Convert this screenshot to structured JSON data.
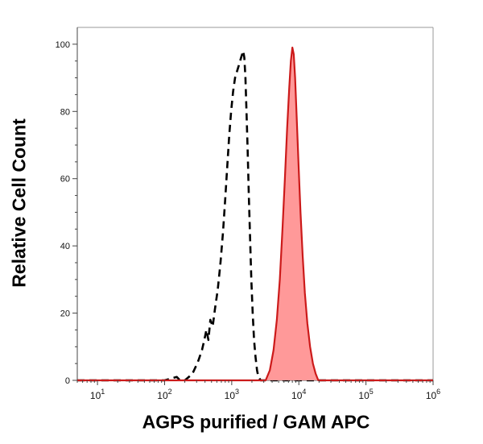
{
  "chart_data": {
    "type": "area",
    "title": "",
    "xlabel": "AGPS purified / GAM APC",
    "ylabel": "Relative Cell Count",
    "xscale": "log",
    "xlim": [
      5,
      1000000
    ],
    "ylim": [
      0,
      105
    ],
    "grid": false,
    "x_ticks": [
      {
        "value": 10,
        "base": "10",
        "exp": "1"
      },
      {
        "value": 100,
        "base": "10",
        "exp": "2"
      },
      {
        "value": 1000,
        "base": "10",
        "exp": "3"
      },
      {
        "value": 10000,
        "base": "10",
        "exp": "4"
      },
      {
        "value": 100000,
        "base": "10",
        "exp": "5"
      },
      {
        "value": 1000000,
        "base": "10",
        "exp": "6"
      }
    ],
    "y_ticks": [
      0,
      20,
      40,
      60,
      80,
      100
    ],
    "series": [
      {
        "style": "dashed-line",
        "color": "#000000",
        "points": [
          [
            5,
            0
          ],
          [
            100,
            0
          ],
          [
            152,
            1
          ],
          [
            170,
            0
          ],
          [
            200,
            0
          ],
          [
            230,
            1
          ],
          [
            260,
            2
          ],
          [
            290,
            4
          ],
          [
            320,
            6
          ],
          [
            360,
            9
          ],
          [
            390,
            12
          ],
          [
            420,
            15
          ],
          [
            450,
            12
          ],
          [
            480,
            18
          ],
          [
            520,
            16
          ],
          [
            560,
            21
          ],
          [
            620,
            27
          ],
          [
            680,
            35
          ],
          [
            740,
            44
          ],
          [
            800,
            54
          ],
          [
            860,
            64
          ],
          [
            920,
            73
          ],
          [
            980,
            80
          ],
          [
            1050,
            86
          ],
          [
            1120,
            90
          ],
          [
            1200,
            92
          ],
          [
            1290,
            94
          ],
          [
            1380,
            96
          ],
          [
            1480,
            98
          ],
          [
            1540,
            96
          ],
          [
            1600,
            90
          ],
          [
            1660,
            80
          ],
          [
            1730,
            68
          ],
          [
            1800,
            55
          ],
          [
            1880,
            42
          ],
          [
            1960,
            30
          ],
          [
            2050,
            20
          ],
          [
            2150,
            12
          ],
          [
            2260,
            7
          ],
          [
            2380,
            3
          ],
          [
            2500,
            1
          ],
          [
            2700,
            0
          ],
          [
            1000000,
            0
          ]
        ]
      },
      {
        "style": "filled",
        "color": "#cc1a1a",
        "fill": "#ff9999",
        "points": [
          [
            5,
            0
          ],
          [
            3200,
            0
          ],
          [
            3700,
            3
          ],
          [
            4200,
            9
          ],
          [
            4700,
            18
          ],
          [
            5200,
            30
          ],
          [
            5700,
            45
          ],
          [
            6200,
            60
          ],
          [
            6700,
            75
          ],
          [
            7200,
            87
          ],
          [
            7600,
            95
          ],
          [
            8000,
            99
          ],
          [
            8400,
            97
          ],
          [
            8800,
            90
          ],
          [
            9300,
            78
          ],
          [
            9900,
            64
          ],
          [
            10600,
            50
          ],
          [
            11400,
            37
          ],
          [
            12300,
            26
          ],
          [
            13400,
            17
          ],
          [
            14700,
            10
          ],
          [
            16200,
            5
          ],
          [
            17800,
            2
          ],
          [
            19500,
            0
          ],
          [
            1000000,
            0
          ]
        ]
      }
    ]
  }
}
